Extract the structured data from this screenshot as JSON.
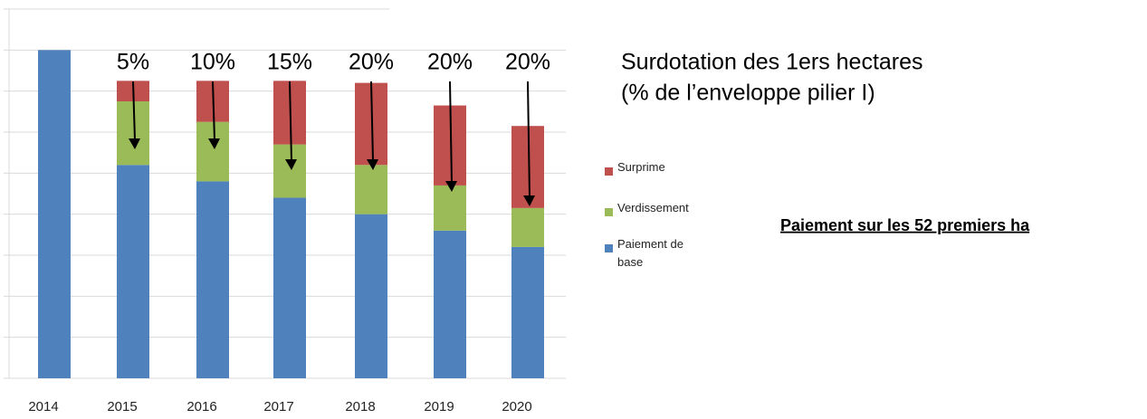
{
  "chart_data": {
    "type": "stacked_bar",
    "title": "Surdotation des 1ers hectares",
    "subtitle": "(% de l’enveloppe pilier I)",
    "note": "Paiement sur les 52 premiers ha",
    "categories": [
      "2014",
      "2015",
      "2016",
      "2017",
      "2018",
      "2019",
      "2020"
    ],
    "series": [
      {
        "name": "Paiement de base",
        "color": "#4f81bd",
        "values": [
          8.0,
          5.2,
          4.8,
          4.4,
          4.0,
          3.6,
          3.2
        ]
      },
      {
        "name": "Verdissement",
        "color": "#9bbb59",
        "values": [
          0,
          1.55,
          1.45,
          1.3,
          1.2,
          1.1,
          0.95
        ]
      },
      {
        "name": "Surprime",
        "color": "#c0504d",
        "values": [
          0,
          0.5,
          1.0,
          1.55,
          2.0,
          1.95,
          2.0
        ]
      }
    ],
    "annotations": [
      "5%",
      "10%",
      "15%",
      "20%",
      "20%",
      "20%"
    ],
    "ylim": [
      0,
      9
    ],
    "yticks": [
      0,
      1,
      2,
      3,
      4,
      5,
      6,
      7,
      8,
      9
    ],
    "grid": true
  }
}
